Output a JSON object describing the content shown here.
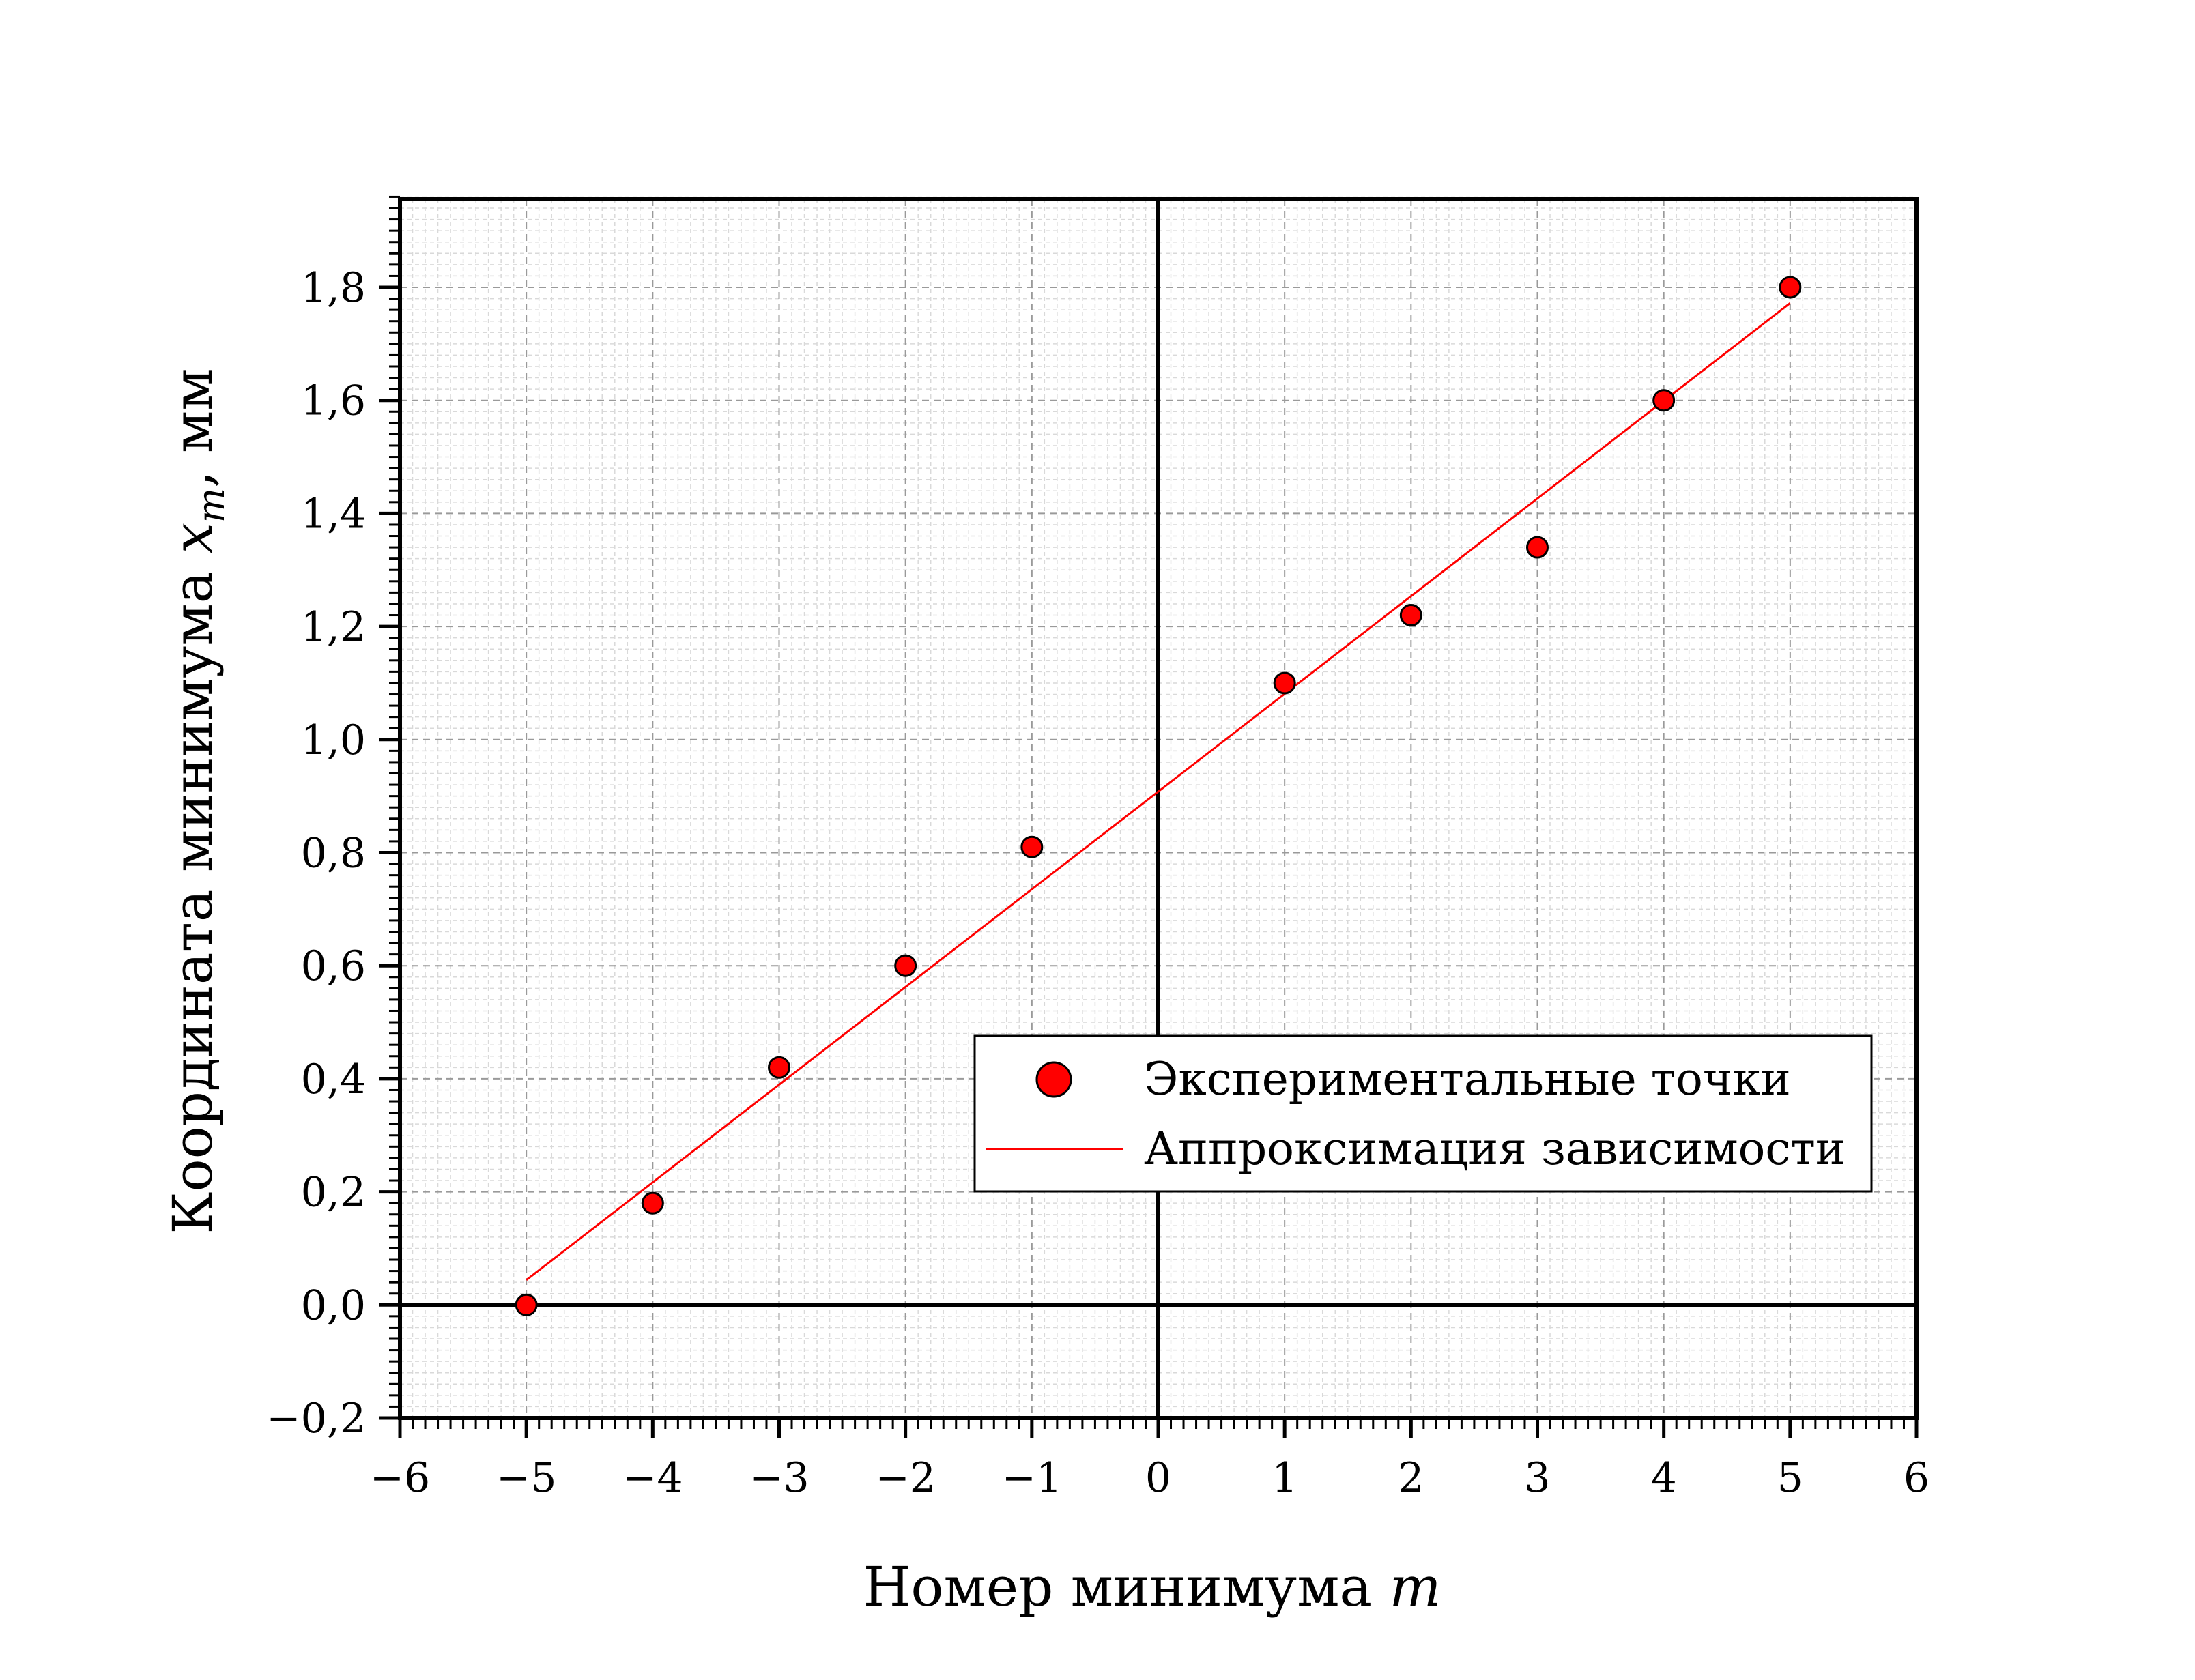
{
  "chart_data": {
    "type": "scatter",
    "xlabel": "Номер минимума ",
    "xlabel_var": "m",
    "ylabel": "Координата минимума ",
    "ylabel_var": "x",
    "ylabel_sub": "m",
    "ylabel_unit": ", мм",
    "xlim": [
      -6,
      6
    ],
    "ylim": [
      -0.2,
      1.96
    ],
    "x_ticks": [
      -6,
      -5,
      -4,
      -3,
      -2,
      -1,
      0,
      1,
      2,
      3,
      4,
      5,
      6
    ],
    "x_tick_labels": [
      "−6",
      "−5",
      "−4",
      "−3",
      "−2",
      "−1",
      "0",
      "1",
      "2",
      "3",
      "4",
      "5",
      "6"
    ],
    "y_ticks": [
      -0.2,
      0.0,
      0.2,
      0.4,
      0.6,
      0.8,
      1.0,
      1.2,
      1.4,
      1.6,
      1.8
    ],
    "y_tick_labels": [
      "−0,2",
      "0,0",
      "0,2",
      "0,4",
      "0,6",
      "0,8",
      "1,0",
      "1,2",
      "1,4",
      "1,6",
      "1,8"
    ],
    "grid": true,
    "legend_position": "lower-right",
    "series": [
      {
        "name": "Экспериментальные точки",
        "kind": "scatter",
        "color": "#ff0000",
        "x": [
          -5,
          -4,
          -3,
          -2,
          -1,
          1,
          2,
          3,
          4,
          5
        ],
        "y": [
          0.0,
          0.18,
          0.42,
          0.6,
          0.81,
          1.1,
          1.22,
          1.34,
          1.6,
          1.8
        ]
      },
      {
        "name": "Аппроксимация зависимости",
        "kind": "line",
        "color": "#ff0000",
        "x": [
          -5,
          5
        ],
        "y": [
          0.044,
          1.772
        ]
      }
    ]
  }
}
